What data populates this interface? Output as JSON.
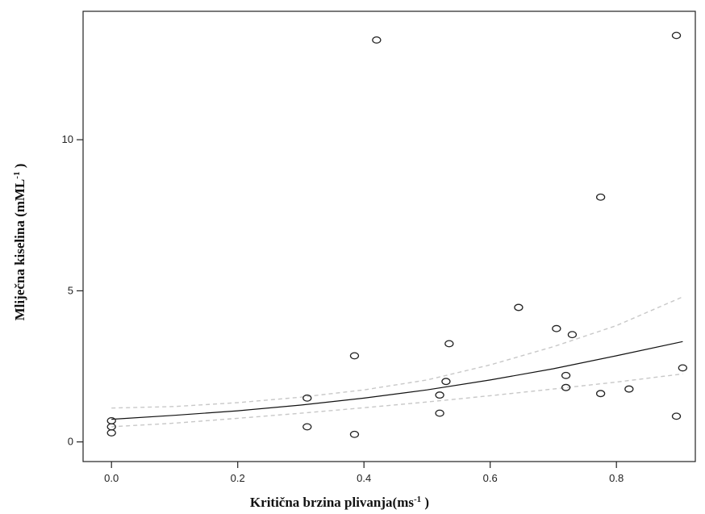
{
  "chart_data": {
    "type": "scatter",
    "xlabel": {
      "text": "Kritična brzina plivanja(ms",
      "sup": "-1",
      "tail": " )"
    },
    "ylabel": {
      "text": "Mliječna kiselina (mML",
      "sup": "-1",
      "tail": " )"
    },
    "xlim": [
      -0.045,
      0.925
    ],
    "ylim": [
      -0.65,
      14.25
    ],
    "xticks": [
      0.0,
      0.2,
      0.4,
      0.6,
      0.8
    ],
    "xtick_labels": [
      "0.0",
      "0.2",
      "0.4",
      "0.6",
      "0.8"
    ],
    "yticks": [
      0,
      5,
      10
    ],
    "ytick_labels": [
      "0",
      "5",
      "10"
    ],
    "grid": false,
    "legend": "none",
    "points": [
      {
        "x": 0.0,
        "y": 0.7
      },
      {
        "x": 0.0,
        "y": 0.5
      },
      {
        "x": 0.0,
        "y": 0.3
      },
      {
        "x": 0.31,
        "y": 1.45
      },
      {
        "x": 0.31,
        "y": 0.5
      },
      {
        "x": 0.385,
        "y": 2.85
      },
      {
        "x": 0.385,
        "y": 0.25
      },
      {
        "x": 0.42,
        "y": 13.3
      },
      {
        "x": 0.52,
        "y": 1.55
      },
      {
        "x": 0.52,
        "y": 0.95
      },
      {
        "x": 0.53,
        "y": 2.0
      },
      {
        "x": 0.535,
        "y": 3.25
      },
      {
        "x": 0.645,
        "y": 4.45
      },
      {
        "x": 0.705,
        "y": 3.75
      },
      {
        "x": 0.72,
        "y": 2.2
      },
      {
        "x": 0.72,
        "y": 1.8
      },
      {
        "x": 0.73,
        "y": 3.55
      },
      {
        "x": 0.775,
        "y": 8.1
      },
      {
        "x": 0.775,
        "y": 1.6
      },
      {
        "x": 0.82,
        "y": 1.75
      },
      {
        "x": 0.895,
        "y": 13.45
      },
      {
        "x": 0.895,
        "y": 0.85
      },
      {
        "x": 0.905,
        "y": 2.45
      }
    ],
    "fit_line": {
      "x": [
        0.0,
        0.1,
        0.2,
        0.3,
        0.4,
        0.5,
        0.6,
        0.7,
        0.8,
        0.905
      ],
      "y": [
        0.75,
        0.88,
        1.03,
        1.22,
        1.45,
        1.72,
        2.05,
        2.42,
        2.85,
        3.32
      ]
    },
    "ci_upper": {
      "x": [
        0.0,
        0.1,
        0.2,
        0.3,
        0.4,
        0.5,
        0.6,
        0.7,
        0.8,
        0.905
      ],
      "y": [
        1.12,
        1.17,
        1.3,
        1.48,
        1.72,
        2.05,
        2.55,
        3.15,
        3.85,
        4.8
      ]
    },
    "ci_lower": {
      "x": [
        0.0,
        0.1,
        0.2,
        0.3,
        0.4,
        0.5,
        0.6,
        0.7,
        0.8,
        0.905
      ],
      "y": [
        0.5,
        0.62,
        0.78,
        0.95,
        1.13,
        1.32,
        1.53,
        1.75,
        1.98,
        2.25
      ]
    },
    "colors": {
      "points": "#222222",
      "fit": "#111111",
      "ci": "#c8c8c8"
    }
  }
}
